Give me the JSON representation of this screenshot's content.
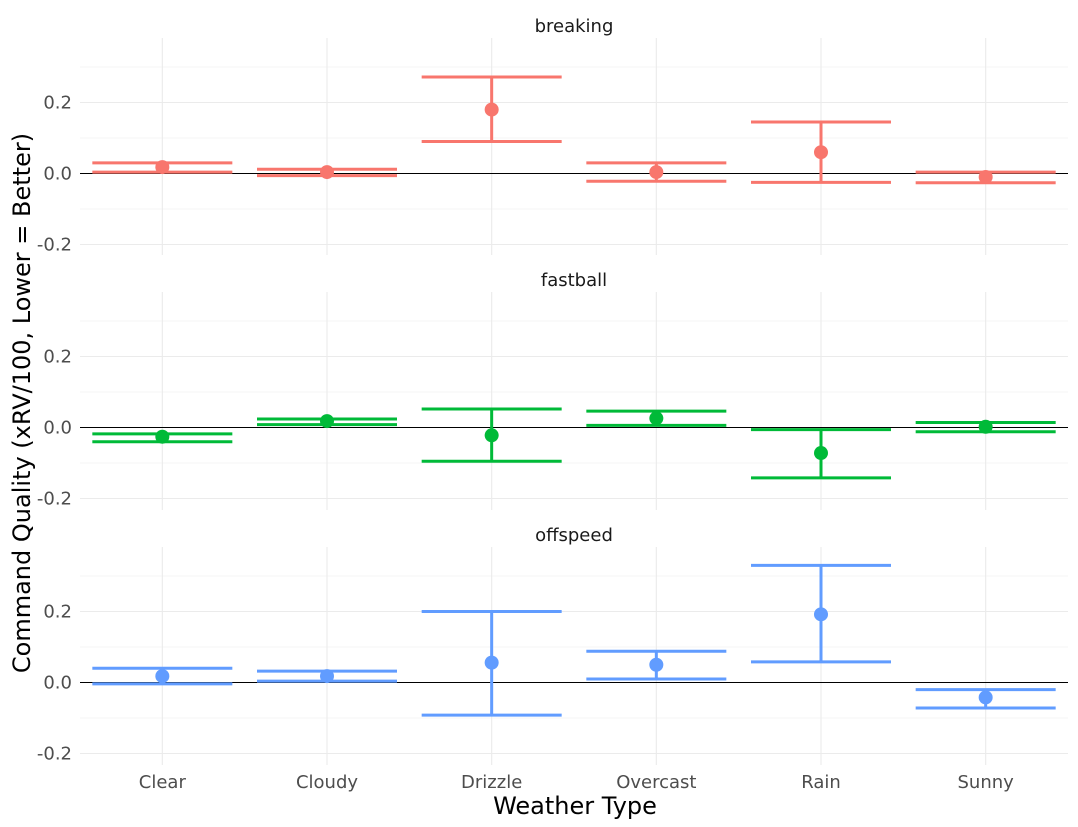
{
  "chart_data": {
    "type": "errorbar-facet",
    "xlabel": "Weather Type",
    "ylabel": "Command Quality  (xRV/100, Lower = Better)",
    "categories": [
      "Clear",
      "Cloudy",
      "Drizzle",
      "Overcast",
      "Rain",
      "Sunny"
    ],
    "ylim": [
      -0.2,
      0.3
    ],
    "y_ticks": [
      -0.2,
      0.0,
      0.2
    ],
    "y_tick_labels": [
      "-0.2",
      "0.0",
      "0.2"
    ],
    "reference_line_y": 0,
    "grid": true,
    "facets": [
      {
        "name": "breaking",
        "color": "#F8766D",
        "points": [
          {
            "x": "Clear",
            "y": 0.018,
            "lower": 0.004,
            "upper": 0.03
          },
          {
            "x": "Cloudy",
            "y": 0.004,
            "lower": -0.006,
            "upper": 0.012
          },
          {
            "x": "Drizzle",
            "y": 0.18,
            "lower": 0.09,
            "upper": 0.272
          },
          {
            "x": "Overcast",
            "y": 0.004,
            "lower": -0.022,
            "upper": 0.03
          },
          {
            "x": "Rain",
            "y": 0.06,
            "lower": -0.025,
            "upper": 0.145
          },
          {
            "x": "Sunny",
            "y": -0.01,
            "lower": -0.026,
            "upper": 0.004
          }
        ]
      },
      {
        "name": "fastball",
        "color": "#00BA38",
        "points": [
          {
            "x": "Clear",
            "y": -0.026,
            "lower": -0.04,
            "upper": -0.018
          },
          {
            "x": "Cloudy",
            "y": 0.018,
            "lower": 0.008,
            "upper": 0.024
          },
          {
            "x": "Drizzle",
            "y": -0.022,
            "lower": -0.095,
            "upper": 0.052
          },
          {
            "x": "Overcast",
            "y": 0.026,
            "lower": 0.006,
            "upper": 0.046
          },
          {
            "x": "Rain",
            "y": -0.072,
            "lower": -0.142,
            "upper": -0.006
          },
          {
            "x": "Sunny",
            "y": 0.002,
            "lower": -0.012,
            "upper": 0.014
          }
        ]
      },
      {
        "name": "offspeed",
        "color": "#619CFF",
        "points": [
          {
            "x": "Clear",
            "y": 0.018,
            "lower": -0.004,
            "upper": 0.04
          },
          {
            "x": "Cloudy",
            "y": 0.018,
            "lower": 0.004,
            "upper": 0.032
          },
          {
            "x": "Drizzle",
            "y": 0.056,
            "lower": -0.092,
            "upper": 0.2
          },
          {
            "x": "Overcast",
            "y": 0.05,
            "lower": 0.01,
            "upper": 0.088
          },
          {
            "x": "Rain",
            "y": 0.192,
            "lower": 0.058,
            "upper": 0.33
          },
          {
            "x": "Sunny",
            "y": -0.042,
            "lower": -0.072,
            "upper": -0.02
          }
        ]
      }
    ]
  }
}
